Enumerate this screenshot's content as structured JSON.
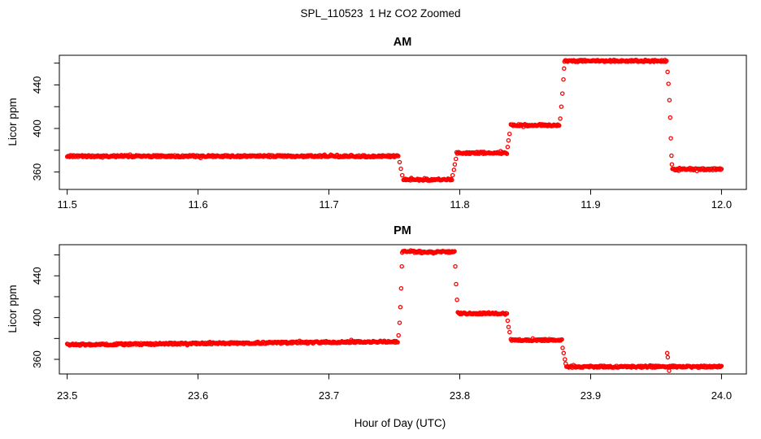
{
  "figure": {
    "title": "SPL_110523  1 Hz CO2 Zoomed",
    "background_color": "#FFFFFF",
    "axis_color": "#000000"
  },
  "chart_data": {
    "type": "scatter",
    "marker": "open-circle",
    "marker_color": "#FF0000",
    "sample_rate_hz": 1,
    "xlabel": "Hour of Day (UTC)",
    "panels": [
      {
        "title": "AM",
        "ylabel": "Licor ppm",
        "xlim": [
          11.494,
          12.019
        ],
        "ylim": [
          344,
          467.2
        ],
        "x_ticks": [
          11.5,
          11.6,
          11.7,
          11.8,
          11.9,
          12.0
        ],
        "x_tick_labels": [
          "11.5",
          "11.6",
          "11.7",
          "11.8",
          "11.9",
          "12.0"
        ],
        "y_ticks": [
          360,
          380,
          400,
          420,
          440,
          460
        ],
        "y_labeled_ticks": [
          360,
          400,
          440
        ],
        "y_labeled_tick_labels": [
          "360",
          "400",
          "440"
        ],
        "plateaus": [
          {
            "t0": 11.5,
            "t1": 11.753,
            "v0": 374.5,
            "v1": 374.5
          },
          {
            "t0": 11.757,
            "t1": 11.794,
            "v0": 353.0,
            "v1": 353.0
          },
          {
            "t0": 11.7975,
            "t1": 11.836,
            "v0": 377.5,
            "v1": 377.5
          },
          {
            "t0": 11.839,
            "t1": 11.876,
            "v0": 403.0,
            "v1": 403.0
          },
          {
            "t0": 11.88,
            "t1": 11.958,
            "v0": 462.0,
            "v1": 462.0
          },
          {
            "t0": 11.9625,
            "t1": 12.0,
            "v0": 362.5,
            "v1": 362.5
          }
        ],
        "transition_points": [
          {
            "t": 11.754,
            "v": 369
          },
          {
            "t": 11.755,
            "v": 363
          },
          {
            "t": 11.756,
            "v": 357
          },
          {
            "t": 11.7945,
            "v": 357
          },
          {
            "t": 11.7955,
            "v": 362
          },
          {
            "t": 11.7962,
            "v": 367
          },
          {
            "t": 11.797,
            "v": 372
          },
          {
            "t": 11.8366,
            "v": 383
          },
          {
            "t": 11.8372,
            "v": 389
          },
          {
            "t": 11.838,
            "v": 395
          },
          {
            "t": 11.8768,
            "v": 409
          },
          {
            "t": 11.8776,
            "v": 420
          },
          {
            "t": 11.8784,
            "v": 432
          },
          {
            "t": 11.8792,
            "v": 445
          },
          {
            "t": 11.8797,
            "v": 455
          },
          {
            "t": 11.9588,
            "v": 452
          },
          {
            "t": 11.9595,
            "v": 441
          },
          {
            "t": 11.9602,
            "v": 426
          },
          {
            "t": 11.9608,
            "v": 410
          },
          {
            "t": 11.9613,
            "v": 391
          },
          {
            "t": 11.9618,
            "v": 375
          },
          {
            "t": 11.9621,
            "v": 367
          }
        ]
      },
      {
        "title": "PM",
        "ylabel": "Licor ppm",
        "xlim": [
          23.494,
          24.019
        ],
        "ylim": [
          346,
          469.8
        ],
        "x_ticks": [
          23.5,
          23.6,
          23.7,
          23.8,
          23.9,
          24.0
        ],
        "x_tick_labels": [
          "23.5",
          "23.6",
          "23.7",
          "23.8",
          "23.9",
          "24.0"
        ],
        "y_ticks": [
          360,
          380,
          400,
          420,
          440,
          460
        ],
        "y_labeled_ticks": [
          360,
          400,
          440
        ],
        "y_labeled_tick_labels": [
          "360",
          "400",
          "440"
        ],
        "plateaus": [
          {
            "t0": 23.5,
            "t1": 23.7525,
            "v0": 374.0,
            "v1": 377.0
          },
          {
            "t0": 23.756,
            "t1": 23.796,
            "v0": 463.0,
            "v1": 463.0
          },
          {
            "t0": 23.7985,
            "t1": 23.836,
            "v0": 404.0,
            "v1": 404.0
          },
          {
            "t0": 23.839,
            "t1": 23.878,
            "v0": 378.5,
            "v1": 378.5
          },
          {
            "t0": 23.8815,
            "t1": 24.0,
            "v0": 353.0,
            "v1": 353.0
          }
        ],
        "transition_points": [
          {
            "t": 23.7532,
            "v": 383
          },
          {
            "t": 23.754,
            "v": 395
          },
          {
            "t": 23.7546,
            "v": 410
          },
          {
            "t": 23.7552,
            "v": 428
          },
          {
            "t": 23.7557,
            "v": 449
          },
          {
            "t": 23.7966,
            "v": 449
          },
          {
            "t": 23.7972,
            "v": 432
          },
          {
            "t": 23.7979,
            "v": 417
          },
          {
            "t": 23.8366,
            "v": 397
          },
          {
            "t": 23.8373,
            "v": 391
          },
          {
            "t": 23.8381,
            "v": 386
          },
          {
            "t": 23.8786,
            "v": 371
          },
          {
            "t": 23.8794,
            "v": 366
          },
          {
            "t": 23.8803,
            "v": 360
          },
          {
            "t": 23.8809,
            "v": 356
          },
          {
            "t": 23.9585,
            "v": 366
          },
          {
            "t": 23.959,
            "v": 362
          },
          {
            "t": 23.96,
            "v": 349
          }
        ]
      }
    ]
  }
}
